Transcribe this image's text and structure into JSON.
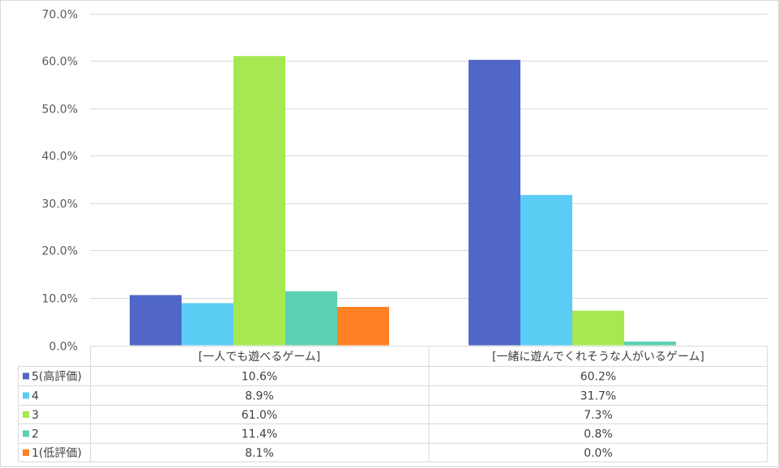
{
  "chart_data": {
    "type": "bar",
    "categories": [
      "[一人でも遊べるゲーム]",
      "[一緒に遊んでくれそうな人がいるゲーム]"
    ],
    "series": [
      {
        "name": "5(高評価)",
        "values": [
          10.6,
          60.2
        ],
        "labels": [
          "10.6%",
          "60.2%"
        ],
        "color": "#5067C8"
      },
      {
        "name": "4",
        "values": [
          8.9,
          31.7
        ],
        "labels": [
          "8.9%",
          "31.7%"
        ],
        "color": "#5BCDF4"
      },
      {
        "name": "3",
        "values": [
          61.0,
          7.3
        ],
        "labels": [
          "61.0%",
          "7.3%"
        ],
        "color": "#A5E852"
      },
      {
        "name": "2",
        "values": [
          11.4,
          0.8
        ],
        "labels": [
          "11.4%",
          "0.8%"
        ],
        "color": "#5CD0B2"
      },
      {
        "name": "1(低評価)",
        "values": [
          8.1,
          0.0
        ],
        "labels": [
          "8.1%",
          "0.0%"
        ],
        "color": "#FF8022"
      }
    ],
    "yticks": [
      "0.0%",
      "10.0%",
      "20.0%",
      "30.0%",
      "40.0%",
      "50.0%",
      "60.0%",
      "70.0%"
    ],
    "ylim": [
      0,
      70
    ],
    "grid": true,
    "legend": "data-table"
  }
}
